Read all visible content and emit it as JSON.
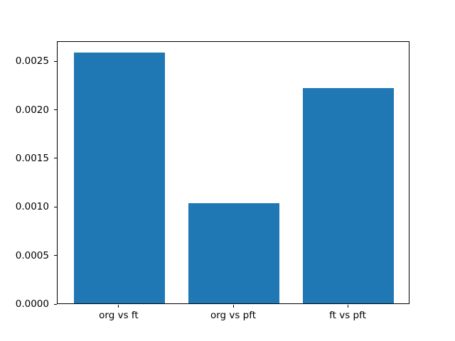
{
  "figure": {
    "background": "#ffffff"
  },
  "chart_data": {
    "type": "bar",
    "title": "",
    "xlabel": "",
    "ylabel": "",
    "categories": [
      "org vs ft",
      "org vs pft",
      "ft vs pft"
    ],
    "values": [
      0.00258,
      0.00103,
      0.00222
    ],
    "bar_color": "#1f77b4",
    "bar_width": 0.8,
    "xlim": [
      -0.54,
      2.54
    ],
    "ylim": [
      0,
      0.00271
    ],
    "yticks": [
      0.0,
      0.0005,
      0.001,
      0.0015,
      0.002,
      0.0025
    ],
    "ytick_labels": [
      "0.0000",
      "0.0005",
      "0.0010",
      "0.0015",
      "0.0020",
      "0.0025"
    ],
    "grid": false,
    "legend": "none",
    "spine_color": "#000000",
    "tick_color": "#000000",
    "tick_label_color": "#000000"
  }
}
